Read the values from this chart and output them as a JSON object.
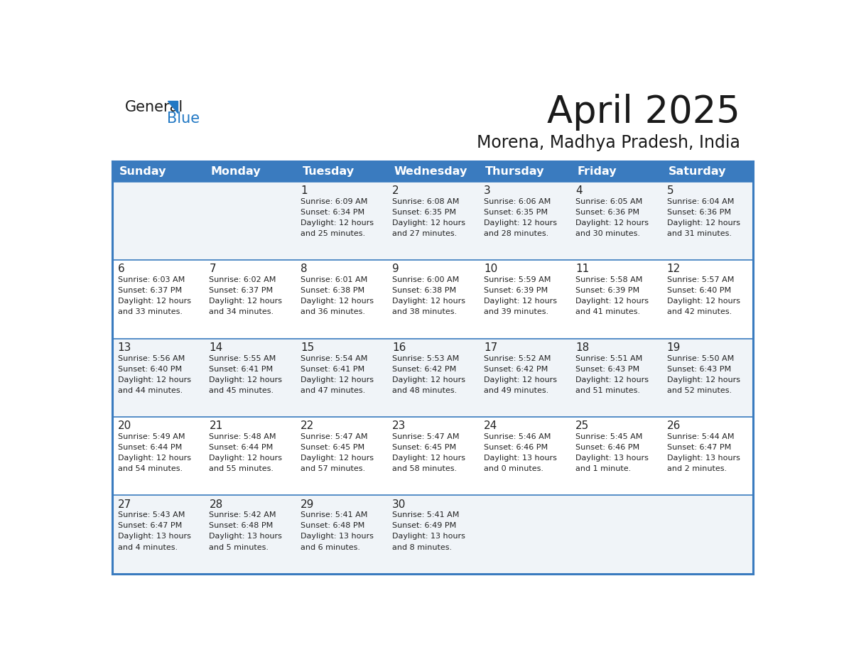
{
  "title": "April 2025",
  "subtitle": "Morena, Madhya Pradesh, India",
  "header_bg": "#3a7bbf",
  "header_text_color": "#ffffff",
  "days_of_week": [
    "Sunday",
    "Monday",
    "Tuesday",
    "Wednesday",
    "Thursday",
    "Friday",
    "Saturday"
  ],
  "bg_color": "#ffffff",
  "row_bg_even": "#f0f4f8",
  "row_bg_odd": "#ffffff",
  "cell_text_color": "#222222",
  "border_color": "#3a7bbf",
  "logo_general_color": "#1a1a1a",
  "logo_blue_color": "#2178c4",
  "weeks": [
    [
      {
        "day": "",
        "sunrise": "",
        "sunset": "",
        "daylight": ""
      },
      {
        "day": "",
        "sunrise": "",
        "sunset": "",
        "daylight": ""
      },
      {
        "day": "1",
        "sunrise": "6:09 AM",
        "sunset": "6:34 PM",
        "daylight": "12 hours\nand 25 minutes."
      },
      {
        "day": "2",
        "sunrise": "6:08 AM",
        "sunset": "6:35 PM",
        "daylight": "12 hours\nand 27 minutes."
      },
      {
        "day": "3",
        "sunrise": "6:06 AM",
        "sunset": "6:35 PM",
        "daylight": "12 hours\nand 28 minutes."
      },
      {
        "day": "4",
        "sunrise": "6:05 AM",
        "sunset": "6:36 PM",
        "daylight": "12 hours\nand 30 minutes."
      },
      {
        "day": "5",
        "sunrise": "6:04 AM",
        "sunset": "6:36 PM",
        "daylight": "12 hours\nand 31 minutes."
      }
    ],
    [
      {
        "day": "6",
        "sunrise": "6:03 AM",
        "sunset": "6:37 PM",
        "daylight": "12 hours\nand 33 minutes."
      },
      {
        "day": "7",
        "sunrise": "6:02 AM",
        "sunset": "6:37 PM",
        "daylight": "12 hours\nand 34 minutes."
      },
      {
        "day": "8",
        "sunrise": "6:01 AM",
        "sunset": "6:38 PM",
        "daylight": "12 hours\nand 36 minutes."
      },
      {
        "day": "9",
        "sunrise": "6:00 AM",
        "sunset": "6:38 PM",
        "daylight": "12 hours\nand 38 minutes."
      },
      {
        "day": "10",
        "sunrise": "5:59 AM",
        "sunset": "6:39 PM",
        "daylight": "12 hours\nand 39 minutes."
      },
      {
        "day": "11",
        "sunrise": "5:58 AM",
        "sunset": "6:39 PM",
        "daylight": "12 hours\nand 41 minutes."
      },
      {
        "day": "12",
        "sunrise": "5:57 AM",
        "sunset": "6:40 PM",
        "daylight": "12 hours\nand 42 minutes."
      }
    ],
    [
      {
        "day": "13",
        "sunrise": "5:56 AM",
        "sunset": "6:40 PM",
        "daylight": "12 hours\nand 44 minutes."
      },
      {
        "day": "14",
        "sunrise": "5:55 AM",
        "sunset": "6:41 PM",
        "daylight": "12 hours\nand 45 minutes."
      },
      {
        "day": "15",
        "sunrise": "5:54 AM",
        "sunset": "6:41 PM",
        "daylight": "12 hours\nand 47 minutes."
      },
      {
        "day": "16",
        "sunrise": "5:53 AM",
        "sunset": "6:42 PM",
        "daylight": "12 hours\nand 48 minutes."
      },
      {
        "day": "17",
        "sunrise": "5:52 AM",
        "sunset": "6:42 PM",
        "daylight": "12 hours\nand 49 minutes."
      },
      {
        "day": "18",
        "sunrise": "5:51 AM",
        "sunset": "6:43 PM",
        "daylight": "12 hours\nand 51 minutes."
      },
      {
        "day": "19",
        "sunrise": "5:50 AM",
        "sunset": "6:43 PM",
        "daylight": "12 hours\nand 52 minutes."
      }
    ],
    [
      {
        "day": "20",
        "sunrise": "5:49 AM",
        "sunset": "6:44 PM",
        "daylight": "12 hours\nand 54 minutes."
      },
      {
        "day": "21",
        "sunrise": "5:48 AM",
        "sunset": "6:44 PM",
        "daylight": "12 hours\nand 55 minutes."
      },
      {
        "day": "22",
        "sunrise": "5:47 AM",
        "sunset": "6:45 PM",
        "daylight": "12 hours\nand 57 minutes."
      },
      {
        "day": "23",
        "sunrise": "5:47 AM",
        "sunset": "6:45 PM",
        "daylight": "12 hours\nand 58 minutes."
      },
      {
        "day": "24",
        "sunrise": "5:46 AM",
        "sunset": "6:46 PM",
        "daylight": "13 hours\nand 0 minutes."
      },
      {
        "day": "25",
        "sunrise": "5:45 AM",
        "sunset": "6:46 PM",
        "daylight": "13 hours\nand 1 minute."
      },
      {
        "day": "26",
        "sunrise": "5:44 AM",
        "sunset": "6:47 PM",
        "daylight": "13 hours\nand 2 minutes."
      }
    ],
    [
      {
        "day": "27",
        "sunrise": "5:43 AM",
        "sunset": "6:47 PM",
        "daylight": "13 hours\nand 4 minutes."
      },
      {
        "day": "28",
        "sunrise": "5:42 AM",
        "sunset": "6:48 PM",
        "daylight": "13 hours\nand 5 minutes."
      },
      {
        "day": "29",
        "sunrise": "5:41 AM",
        "sunset": "6:48 PM",
        "daylight": "13 hours\nand 6 minutes."
      },
      {
        "day": "30",
        "sunrise": "5:41 AM",
        "sunset": "6:49 PM",
        "daylight": "13 hours\nand 8 minutes."
      },
      {
        "day": "",
        "sunrise": "",
        "sunset": "",
        "daylight": ""
      },
      {
        "day": "",
        "sunrise": "",
        "sunset": "",
        "daylight": ""
      },
      {
        "day": "",
        "sunrise": "",
        "sunset": "",
        "daylight": ""
      }
    ]
  ]
}
